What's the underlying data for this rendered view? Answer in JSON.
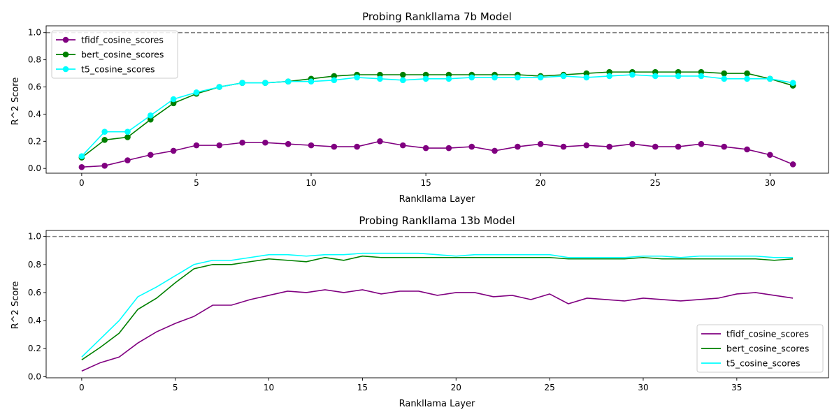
{
  "chart_data": [
    {
      "type": "line",
      "title": "Probing Rankllama 7b Model",
      "xlabel": "Rankllama Layer",
      "ylabel": "R^2 Score",
      "xlim": [
        -1.55,
        32.55
      ],
      "ylim": [
        -0.035,
        1.05
      ],
      "xticks": [
        0,
        5,
        10,
        15,
        20,
        25,
        30
      ],
      "yticks": [
        0.0,
        0.2,
        0.4,
        0.6,
        0.8,
        1.0
      ],
      "reference_line": 1.0,
      "markers": true,
      "legend_position": "upper-left",
      "x": [
        0,
        1,
        2,
        3,
        4,
        5,
        6,
        7,
        8,
        9,
        10,
        11,
        12,
        13,
        14,
        15,
        16,
        17,
        18,
        19,
        20,
        21,
        22,
        23,
        24,
        25,
        26,
        27,
        28,
        29,
        30,
        31
      ],
      "series": [
        {
          "name": "tfidf_cosine_scores",
          "color": "#800080",
          "values": [
            0.01,
            0.02,
            0.06,
            0.1,
            0.13,
            0.17,
            0.17,
            0.19,
            0.19,
            0.18,
            0.17,
            0.16,
            0.16,
            0.2,
            0.17,
            0.15,
            0.15,
            0.16,
            0.13,
            0.16,
            0.18,
            0.16,
            0.17,
            0.16,
            0.18,
            0.16,
            0.16,
            0.18,
            0.16,
            0.14,
            0.1,
            0.03
          ]
        },
        {
          "name": "bert_cosine_scores",
          "color": "#008000",
          "values": [
            0.08,
            0.21,
            0.23,
            0.36,
            0.48,
            0.55,
            0.6,
            0.63,
            0.63,
            0.64,
            0.66,
            0.68,
            0.69,
            0.69,
            0.69,
            0.69,
            0.69,
            0.69,
            0.69,
            0.69,
            0.68,
            0.69,
            0.7,
            0.71,
            0.71,
            0.71,
            0.71,
            0.71,
            0.7,
            0.7,
            0.66,
            0.61
          ]
        },
        {
          "name": "t5_cosine_scores",
          "color": "#00FFFF",
          "values": [
            0.09,
            0.27,
            0.27,
            0.39,
            0.51,
            0.56,
            0.6,
            0.63,
            0.63,
            0.64,
            0.64,
            0.65,
            0.67,
            0.66,
            0.65,
            0.66,
            0.66,
            0.67,
            0.67,
            0.67,
            0.67,
            0.68,
            0.67,
            0.68,
            0.69,
            0.68,
            0.68,
            0.68,
            0.66,
            0.66,
            0.66,
            0.63
          ]
        }
      ]
    },
    {
      "type": "line",
      "title": "Probing Rankllama 13b Model",
      "xlabel": "Rankllama Layer",
      "ylabel": "R^2 Score",
      "xlim": [
        -1.9,
        39.9
      ],
      "ylim": [
        -0.008,
        1.043
      ],
      "xticks": [
        0,
        5,
        10,
        15,
        20,
        25,
        30,
        35
      ],
      "yticks": [
        0.0,
        0.2,
        0.4,
        0.6,
        0.8,
        1.0
      ],
      "reference_line": 1.0,
      "markers": false,
      "legend_position": "lower-right",
      "x": [
        0,
        1,
        2,
        3,
        4,
        5,
        6,
        7,
        8,
        9,
        10,
        11,
        12,
        13,
        14,
        15,
        16,
        17,
        18,
        19,
        20,
        21,
        22,
        23,
        24,
        25,
        26,
        27,
        28,
        29,
        30,
        31,
        32,
        33,
        34,
        35,
        36,
        37,
        38
      ],
      "series": [
        {
          "name": "tfidf_cosine_scores",
          "color": "#800080",
          "values": [
            0.04,
            0.1,
            0.14,
            0.24,
            0.32,
            0.38,
            0.43,
            0.51,
            0.51,
            0.55,
            0.58,
            0.61,
            0.6,
            0.62,
            0.6,
            0.62,
            0.59,
            0.61,
            0.61,
            0.58,
            0.6,
            0.6,
            0.57,
            0.58,
            0.55,
            0.59,
            0.52,
            0.56,
            0.55,
            0.54,
            0.56,
            0.55,
            0.54,
            0.55,
            0.56,
            0.59,
            0.6,
            0.58,
            0.56
          ]
        },
        {
          "name": "bert_cosine_scores",
          "color": "#008000",
          "values": [
            0.12,
            0.21,
            0.31,
            0.48,
            0.56,
            0.67,
            0.77,
            0.8,
            0.8,
            0.82,
            0.84,
            0.83,
            0.82,
            0.85,
            0.83,
            0.86,
            0.85,
            0.85,
            0.85,
            0.85,
            0.85,
            0.85,
            0.85,
            0.85,
            0.85,
            0.85,
            0.84,
            0.84,
            0.84,
            0.84,
            0.85,
            0.84,
            0.84,
            0.84,
            0.84,
            0.84,
            0.84,
            0.83,
            0.84
          ]
        },
        {
          "name": "t5_cosine_scores",
          "color": "#00FFFF",
          "values": [
            0.14,
            0.27,
            0.4,
            0.57,
            0.64,
            0.72,
            0.8,
            0.83,
            0.83,
            0.85,
            0.87,
            0.87,
            0.86,
            0.87,
            0.87,
            0.88,
            0.88,
            0.88,
            0.88,
            0.87,
            0.86,
            0.87,
            0.87,
            0.87,
            0.87,
            0.87,
            0.85,
            0.85,
            0.85,
            0.85,
            0.86,
            0.86,
            0.85,
            0.86,
            0.86,
            0.86,
            0.86,
            0.85,
            0.85
          ]
        }
      ]
    }
  ]
}
